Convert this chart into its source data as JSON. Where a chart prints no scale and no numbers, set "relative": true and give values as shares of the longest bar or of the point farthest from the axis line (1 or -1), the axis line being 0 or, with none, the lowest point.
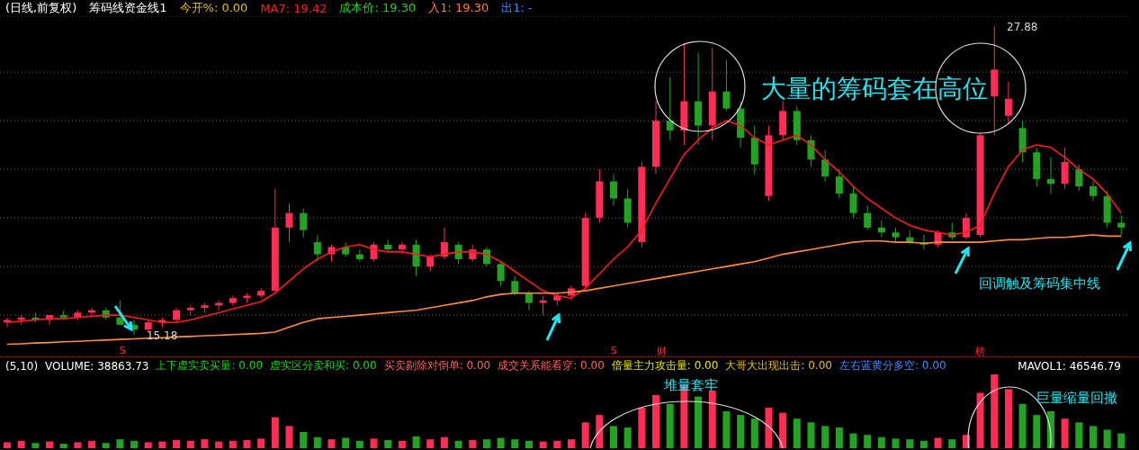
{
  "chart_data": [
    {
      "type": "candlestick",
      "title": "(日线,前复权)",
      "categories": [
        null,
        null,
        null,
        null,
        null,
        null,
        null,
        null,
        null,
        null,
        null,
        null,
        null,
        null,
        null,
        null,
        null,
        null,
        null,
        null,
        null,
        null,
        null,
        null,
        null,
        null,
        null,
        null,
        null,
        null,
        null,
        null,
        null,
        null,
        null,
        null,
        null,
        null,
        null,
        null,
        null,
        null,
        null,
        null,
        null,
        null,
        null,
        null,
        null,
        null,
        null,
        null,
        null,
        null,
        null,
        null,
        null,
        null,
        null,
        null,
        null,
        null,
        null,
        null,
        null,
        null,
        null,
        null,
        null,
        null,
        null,
        null,
        null,
        null,
        null,
        null,
        null,
        null,
        null,
        null
      ],
      "ohlc": [
        [
          15.7,
          15.9,
          15.5,
          15.8
        ],
        [
          15.8,
          16.0,
          15.6,
          15.9
        ],
        [
          15.9,
          16.1,
          15.7,
          15.8
        ],
        [
          15.8,
          16.0,
          15.6,
          16.0
        ],
        [
          16.0,
          16.2,
          15.8,
          15.9
        ],
        [
          15.9,
          16.2,
          15.8,
          16.1
        ],
        [
          16.1,
          16.3,
          15.9,
          16.2
        ],
        [
          16.2,
          16.3,
          15.8,
          15.9
        ],
        [
          15.9,
          16.6,
          15.6,
          15.6
        ],
        [
          15.6,
          15.8,
          15.18,
          15.4
        ],
        [
          15.4,
          15.8,
          15.3,
          15.7
        ],
        [
          15.7,
          15.9,
          15.5,
          15.8
        ],
        [
          15.8,
          16.3,
          15.7,
          16.2
        ],
        [
          16.2,
          16.4,
          16.0,
          16.3
        ],
        [
          16.3,
          16.5,
          16.1,
          16.4
        ],
        [
          16.4,
          16.6,
          16.2,
          16.5
        ],
        [
          16.5,
          16.8,
          16.4,
          16.7
        ],
        [
          16.7,
          16.9,
          16.5,
          16.8
        ],
        [
          16.8,
          17.1,
          16.7,
          17.0
        ],
        [
          17.0,
          21.2,
          16.9,
          19.6
        ],
        [
          19.6,
          20.6,
          19.0,
          20.2
        ],
        [
          20.2,
          20.4,
          19.2,
          19.5
        ],
        [
          19.0,
          19.3,
          18.2,
          18.5
        ],
        [
          18.5,
          18.9,
          18.2,
          18.8
        ],
        [
          18.8,
          19.0,
          18.4,
          18.5
        ],
        [
          18.5,
          18.7,
          18.2,
          18.3
        ],
        [
          18.3,
          19.0,
          18.2,
          18.9
        ],
        [
          18.9,
          19.1,
          18.6,
          18.7
        ],
        [
          18.7,
          19.0,
          18.5,
          18.9
        ],
        [
          18.9,
          19.1,
          17.6,
          18.0
        ],
        [
          18.0,
          18.5,
          17.8,
          18.4
        ],
        [
          18.4,
          19.6,
          18.3,
          19.0
        ],
        [
          18.9,
          19.0,
          18.1,
          18.3
        ],
        [
          18.3,
          18.9,
          18.2,
          18.7
        ],
        [
          18.7,
          18.8,
          18.0,
          18.1
        ],
        [
          18.1,
          18.2,
          17.2,
          17.4
        ],
        [
          17.4,
          17.6,
          16.8,
          16.9
        ],
        [
          16.9,
          17.0,
          16.2,
          16.5
        ],
        [
          16.5,
          16.8,
          16.0,
          16.6
        ],
        [
          16.6,
          16.9,
          16.4,
          16.8
        ],
        [
          16.8,
          17.2,
          16.6,
          17.1
        ],
        [
          17.2,
          20.2,
          17.0,
          20.0
        ],
        [
          20.0,
          22.0,
          19.8,
          21.5
        ],
        [
          21.5,
          21.8,
          20.5,
          20.8
        ],
        [
          20.8,
          21.2,
          19.6,
          19.8
        ],
        [
          19.0,
          22.3,
          18.8,
          22.1
        ],
        [
          22.1,
          24.8,
          21.8,
          24.0
        ],
        [
          24.0,
          25.8,
          23.2,
          23.6
        ],
        [
          23.6,
          27.2,
          23.0,
          24.8
        ],
        [
          24.8,
          26.8,
          23.0,
          23.8
        ],
        [
          23.8,
          27.0,
          23.2,
          25.2
        ],
        [
          25.2,
          26.5,
          24.4,
          24.5
        ],
        [
          24.5,
          24.8,
          22.9,
          23.3
        ],
        [
          23.3,
          23.8,
          21.8,
          22.2
        ],
        [
          20.9,
          23.8,
          20.7,
          23.4
        ],
        [
          23.4,
          24.8,
          23.2,
          24.4
        ],
        [
          24.4,
          24.6,
          23.0,
          23.2
        ],
        [
          23.2,
          23.4,
          22.1,
          22.4
        ],
        [
          22.4,
          22.8,
          21.5,
          21.7
        ],
        [
          21.7,
          22.0,
          20.8,
          21.0
        ],
        [
          21.0,
          21.3,
          20.0,
          20.2
        ],
        [
          20.2,
          20.5,
          19.5,
          19.6
        ],
        [
          19.6,
          19.9,
          19.2,
          19.4
        ],
        [
          19.4,
          19.6,
          19.0,
          19.2
        ],
        [
          19.2,
          19.5,
          18.9,
          19.0
        ],
        [
          19.0,
          19.3,
          18.7,
          18.9
        ],
        [
          18.9,
          19.5,
          18.8,
          19.4
        ],
        [
          19.4,
          19.8,
          19.1,
          19.2
        ],
        [
          19.2,
          20.2,
          19.1,
          20.0
        ],
        [
          19.3,
          23.5,
          19.2,
          23.4
        ],
        [
          25.0,
          27.88,
          23.4,
          26.1
        ],
        [
          24.2,
          25.6,
          23.9,
          24.9
        ],
        [
          23.7,
          24.0,
          22.3,
          22.7
        ],
        [
          22.7,
          22.9,
          21.3,
          21.6
        ],
        [
          21.6,
          22.5,
          21.0,
          21.4
        ],
        [
          21.4,
          22.9,
          21.2,
          22.3
        ],
        [
          22.0,
          22.2,
          21.1,
          21.3
        ],
        [
          21.3,
          21.5,
          20.7,
          20.9
        ],
        [
          20.9,
          21.1,
          19.6,
          19.8
        ],
        [
          19.8,
          20.1,
          19.3,
          19.6
        ]
      ],
      "colors": [
        "#ff2d55",
        "#ff2d55",
        "#22a322",
        "#ff2d55",
        "#22a322",
        "#ff2d55",
        "#ff2d55",
        "#22a322",
        "#22a322",
        "#22a322",
        "#ff2d55",
        "#ff2d55",
        "#ff2d55",
        "#ff2d55",
        "#ff2d55",
        "#ff2d55",
        "#ff2d55",
        "#ff2d55",
        "#ff2d55",
        "#ff2d55",
        "#ff2d55",
        "#22a322",
        "#22a322",
        "#ff2d55",
        "#22a322",
        "#22a322",
        "#ff2d55",
        "#22a322",
        "#ff2d55",
        "#22a322",
        "#ff2d55",
        "#ff2d55",
        "#22a322",
        "#ff2d55",
        "#22a322",
        "#22a322",
        "#22a322",
        "#22a322",
        "#ff2d55",
        "#ff2d55",
        "#ff2d55",
        "#ff2d55",
        "#ff2d55",
        "#22a322",
        "#22a322",
        "#ff2d55",
        "#ff2d55",
        "#22a322",
        "#ff2d55",
        "#22a322",
        "#ff2d55",
        "#22a322",
        "#22a322",
        "#22a322",
        "#ff2d55",
        "#ff2d55",
        "#22a322",
        "#22a322",
        "#22a322",
        "#22a322",
        "#22a322",
        "#22a322",
        "#22a322",
        "#22a322",
        "#22a322",
        "#22a322",
        "#ff2d55",
        "#22a322",
        "#ff2d55",
        "#ff2d55",
        "#ff2d55",
        "#ff2d55",
        "#22a322",
        "#22a322",
        "#22a322",
        "#ff2d55",
        "#22a322",
        "#22a322",
        "#22a322",
        "#22a322"
      ],
      "series": [
        {
          "type": "line",
          "color": "#ff1a1a",
          "values": [
            15.7,
            15.75,
            15.8,
            15.85,
            15.85,
            15.9,
            15.95,
            16.0,
            16.0,
            15.9,
            15.8,
            15.7,
            15.7,
            15.8,
            15.95,
            16.1,
            16.25,
            16.4,
            16.55,
            16.9,
            17.4,
            17.9,
            18.3,
            18.6,
            18.8,
            18.9,
            18.7,
            18.6,
            18.6,
            18.5,
            18.4,
            18.5,
            18.6,
            18.6,
            18.5,
            18.2,
            17.8,
            17.4,
            17.0,
            16.8,
            16.7,
            17.1,
            17.7,
            18.3,
            18.8,
            19.5,
            20.6,
            21.6,
            22.6,
            23.2,
            23.7,
            24.0,
            23.8,
            23.3,
            23.0,
            23.2,
            23.4,
            23.0,
            22.4,
            21.9,
            21.3,
            20.8,
            20.4,
            20.0,
            19.7,
            19.5,
            19.4,
            19.3,
            19.4,
            19.7,
            21.0,
            22.1,
            22.8,
            23.0,
            22.9,
            22.5,
            22.0,
            21.6,
            21.0,
            20.2
          ]
        },
        {
          "type": "line",
          "color": "#ff8c3a",
          "values": [
            14.8,
            14.82,
            14.85,
            14.87,
            14.9,
            14.92,
            14.95,
            14.97,
            15.0,
            15.02,
            15.05,
            15.07,
            15.1,
            15.12,
            15.15,
            15.17,
            15.2,
            15.22,
            15.25,
            15.3,
            15.5,
            15.7,
            15.85,
            15.9,
            15.95,
            16.0,
            16.05,
            16.1,
            16.15,
            16.2,
            16.3,
            16.4,
            16.5,
            16.6,
            16.75,
            16.85,
            16.9,
            16.9,
            16.9,
            16.9,
            16.95,
            17.0,
            17.1,
            17.2,
            17.3,
            17.4,
            17.5,
            17.6,
            17.7,
            17.8,
            17.9,
            18.0,
            18.1,
            18.2,
            18.35,
            18.5,
            18.6,
            18.7,
            18.8,
            18.9,
            19.0,
            19.05,
            19.05,
            19.0,
            19.0,
            18.95,
            19.0,
            19.0,
            19.0,
            19.0,
            19.05,
            19.1,
            19.1,
            19.15,
            19.2,
            19.2,
            19.25,
            19.3,
            19.25,
            19.25
          ]
        }
      ],
      "ylim": [
        14.3,
        28.3
      ],
      "yticks": [
        {
          "value": 16,
          "label": null
        },
        {
          "value": 18,
          "label": null
        },
        {
          "value": 20,
          "label": null
        },
        {
          "value": 22,
          "label": null
        },
        {
          "value": 24,
          "label": null
        },
        {
          "value": 26,
          "label": null
        }
      ],
      "grid": "y",
      "tick_labels": false,
      "annotations": [
        "筹码线资金线1",
        "今开%: 0.00",
        "MA7: 19.42",
        "成本价: 19.30",
        "入1: 19.30",
        "出1: -",
        "大量的筹码套在高位",
        "回调触及筹码集中线",
        "27.88",
        "15.18",
        "S",
        "S",
        "财",
        "榜"
      ]
    },
    {
      "type": "bar",
      "relative": true,
      "categories": [
        null,
        null,
        null,
        null,
        null,
        null,
        null,
        null,
        null,
        null,
        null,
        null,
        null,
        null,
        null,
        null,
        null,
        null,
        null,
        null,
        null,
        null,
        null,
        null,
        null,
        null,
        null,
        null,
        null,
        null,
        null,
        null,
        null,
        null,
        null,
        null,
        null,
        null,
        null,
        null,
        null,
        null,
        null,
        null,
        null,
        null,
        null,
        null,
        null,
        null,
        null,
        null,
        null,
        null,
        null,
        null,
        null,
        null,
        null,
        null,
        null,
        null,
        null,
        null,
        null,
        null,
        null,
        null,
        null,
        null,
        null,
        null,
        null,
        null,
        null,
        null,
        null,
        null,
        null,
        null
      ],
      "values": [
        0.08,
        0.1,
        0.07,
        0.09,
        0.06,
        0.08,
        0.1,
        0.07,
        0.12,
        0.1,
        0.08,
        0.09,
        0.11,
        0.1,
        0.12,
        0.09,
        0.1,
        0.11,
        0.13,
        0.42,
        0.3,
        0.22,
        0.15,
        0.12,
        0.14,
        0.1,
        0.13,
        0.11,
        0.1,
        0.16,
        0.12,
        0.15,
        0.1,
        0.11,
        0.12,
        0.14,
        0.12,
        0.1,
        0.09,
        0.1,
        0.12,
        0.35,
        0.45,
        0.3,
        0.28,
        0.55,
        0.72,
        0.6,
        0.85,
        0.7,
        0.78,
        0.5,
        0.45,
        0.4,
        0.55,
        0.48,
        0.4,
        0.35,
        0.3,
        0.28,
        0.2,
        0.18,
        0.15,
        0.13,
        0.12,
        0.1,
        0.14,
        0.12,
        0.18,
        0.75,
        1.0,
        0.8,
        0.6,
        0.45,
        0.5,
        0.4,
        0.35,
        0.3,
        0.25,
        0.2
      ],
      "colors": [
        "#ff2d55",
        "#ff2d55",
        "#22a322",
        "#ff2d55",
        "#22a322",
        "#ff2d55",
        "#ff2d55",
        "#22a322",
        "#22a322",
        "#22a322",
        "#ff2d55",
        "#ff2d55",
        "#ff2d55",
        "#ff2d55",
        "#ff2d55",
        "#ff2d55",
        "#ff2d55",
        "#ff2d55",
        "#ff2d55",
        "#ff2d55",
        "#ff2d55",
        "#22a322",
        "#22a322",
        "#ff2d55",
        "#22a322",
        "#22a322",
        "#ff2d55",
        "#22a322",
        "#ff2d55",
        "#22a322",
        "#ff2d55",
        "#ff2d55",
        "#22a322",
        "#ff2d55",
        "#22a322",
        "#22a322",
        "#22a322",
        "#22a322",
        "#ff2d55",
        "#ff2d55",
        "#ff2d55",
        "#ff2d55",
        "#ff2d55",
        "#22a322",
        "#22a322",
        "#ff2d55",
        "#ff2d55",
        "#22a322",
        "#ff2d55",
        "#22a322",
        "#ff2d55",
        "#22a322",
        "#22a322",
        "#22a322",
        "#ff2d55",
        "#ff2d55",
        "#22a322",
        "#22a322",
        "#22a322",
        "#22a322",
        "#22a322",
        "#22a322",
        "#22a322",
        "#22a322",
        "#22a322",
        "#22a322",
        "#ff2d55",
        "#22a322",
        "#ff2d55",
        "#ff2d55",
        "#ff2d55",
        "#ff2d55",
        "#22a322",
        "#22a322",
        "#22a322",
        "#ff2d55",
        "#22a322",
        "#22a322",
        "#22a322",
        "#22a322"
      ],
      "tick_labels": false,
      "annotations": [
        "(5,10)",
        "VOLUME: 38863.73",
        "上下虚实卖买量: 0.00",
        "虚实区分卖和买: 0.00",
        "买卖剔除对倒单: 0.00",
        "成交关系能看穿: 0.00",
        "倍量主力攻击量: 0.00",
        "大哥大出现出击: 0.00",
        "左右蓝黄分多空: 0.00",
        "MAVOL1: 46546.79",
        "堆量套牢",
        "巨量缩量回撤"
      ]
    }
  ]
}
